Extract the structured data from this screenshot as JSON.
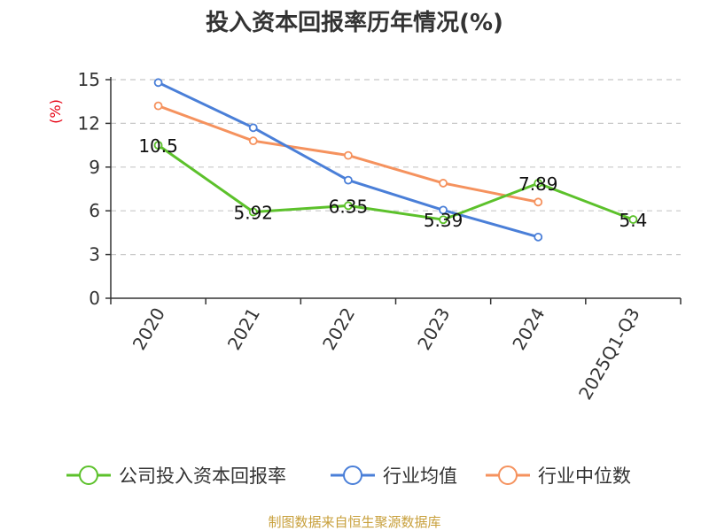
{
  "chart_data": {
    "type": "line",
    "title": "投入资本回报率历年情况(%)",
    "ylabel": "(%)",
    "xlabel": "",
    "categories": [
      "2020",
      "2021",
      "2022",
      "2023",
      "2024",
      "2025Q1-Q3"
    ],
    "ylim": [
      0,
      15
    ],
    "yticks": [
      0,
      3,
      6,
      9,
      12,
      15
    ],
    "grid": true,
    "series": [
      {
        "name": "公司投入资本回报率",
        "color": "#5cc12b",
        "values": [
          10.5,
          5.92,
          6.35,
          5.39,
          7.89,
          5.4
        ],
        "labels": [
          "10.5",
          "5.92",
          "6.35",
          "5.39",
          "7.89",
          "5.4"
        ]
      },
      {
        "name": "行业均值",
        "color": "#4a7fd8",
        "values": [
          14.8,
          11.7,
          8.1,
          6.05,
          4.2,
          null
        ]
      },
      {
        "name": "行业中位数",
        "color": "#f5925e",
        "values": [
          13.2,
          10.8,
          9.8,
          7.9,
          6.6,
          null
        ]
      }
    ],
    "legend_position": "bottom"
  },
  "source": "制图数据来自恒生聚源数据库"
}
